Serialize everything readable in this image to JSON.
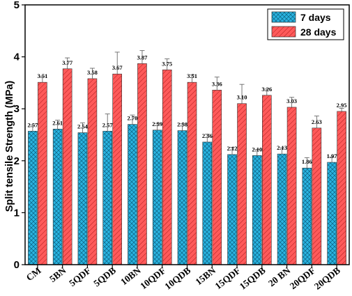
{
  "chart_data": {
    "type": "bar",
    "title": "",
    "xlabel": "",
    "ylabel": "Split tensile Strength (MPa)",
    "ylim": [
      0,
      5
    ],
    "yticks": [
      "0",
      "1",
      "2",
      "3",
      "4",
      "5"
    ],
    "grid": false,
    "legend_position": "top-right",
    "categories": [
      "CM",
      "5BN",
      "5QDF",
      "5QDB",
      "10BN",
      "10QDF",
      "10QDB",
      "15BN",
      "15QDF",
      "15QDB",
      "20 BN",
      "20QDF",
      "20QDB"
    ],
    "series": [
      {
        "name": "7 days",
        "color": "#2ab4e0",
        "hatch": "crosshatch",
        "values": [
          2.57,
          2.61,
          2.54,
          2.57,
          2.7,
          2.59,
          2.58,
          2.36,
          2.12,
          2.1,
          2.13,
          1.86,
          1.97
        ],
        "labels": [
          "2.57",
          "2.61",
          "2.54",
          "2.57",
          "2.70",
          "2.59",
          "2.58",
          "2.36",
          "2.12",
          "2.10",
          "2.13",
          "1.86",
          "1.97"
        ],
        "errors": [
          0.12,
          0.17,
          0.19,
          0.33,
          0.18,
          0.13,
          0.13,
          0.15,
          0.14,
          0.12,
          0.12,
          0.2,
          0.1
        ]
      },
      {
        "name": "28 days",
        "color": "#ff5a5a",
        "hatch": "diagonal",
        "values": [
          3.51,
          3.77,
          3.58,
          3.67,
          3.87,
          3.75,
          3.51,
          3.36,
          3.1,
          3.26,
          3.03,
          2.63,
          2.95
        ],
        "labels": [
          "3.51",
          "3.77",
          "3.58",
          "3.67",
          "3.87",
          "3.75",
          "3.51",
          "3.36",
          "3.10",
          "3.26",
          "3.03",
          "2.63",
          "2.95"
        ],
        "errors": [
          0.12,
          0.21,
          0.2,
          0.42,
          0.25,
          0.21,
          0.14,
          0.25,
          0.37,
          0.12,
          0.19,
          0.23,
          0.06
        ]
      }
    ]
  }
}
